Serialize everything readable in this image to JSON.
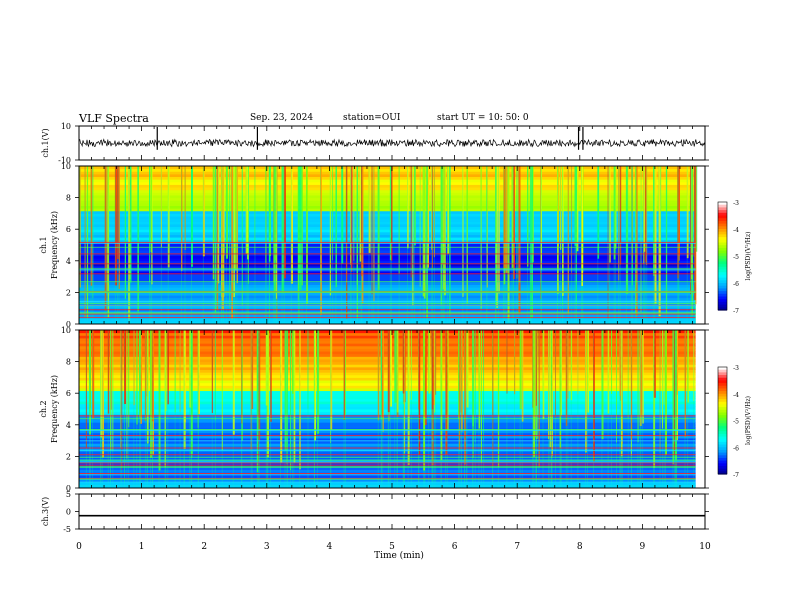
{
  "header": {
    "title": "VLF Spectra",
    "date": "Sep. 23, 2024",
    "station": "station=OUI",
    "start": "start  UT =   10: 50: 0"
  },
  "chart_data": [
    {
      "type": "line",
      "panel": "ch1_waveform",
      "ylabel": "ch.1(V)",
      "ylim": [
        -10,
        10
      ],
      "y_ticks": [
        "10",
        "-10"
      ],
      "x_range": [
        0,
        10
      ],
      "trace_color": "#000000",
      "baseline_value": 0,
      "spikes_min": [
        1.25,
        2.85,
        7.98,
        8.05
      ]
    },
    {
      "type": "heatmap",
      "panel": "ch1_spectrogram",
      "ylabel": "ch.1\nFrequency  (kHz)",
      "ylim": [
        0,
        10
      ],
      "y_ticks": [
        "0",
        "2",
        "4",
        "6",
        "8",
        "10"
      ],
      "x_range": [
        0,
        10
      ],
      "data_extent_min": 9.85,
      "colorbar": {
        "label": "log(PSD)(V²/Hz)",
        "ticks": [
          "-3",
          "-4",
          "-5",
          "-6",
          "-7"
        ],
        "range": [
          -7,
          -3
        ],
        "colormap": [
          "#000080",
          "#0000ff",
          "#00a0ff",
          "#00ffff",
          "#00ff80",
          "#80ff00",
          "#ffff00",
          "#ff8000",
          "#ff0000",
          "#ffffff"
        ]
      }
    },
    {
      "type": "heatmap",
      "panel": "ch2_spectrogram",
      "ylabel": "ch.2\nFrequency  (kHz)",
      "ylim": [
        0,
        10
      ],
      "y_ticks": [
        "0",
        "2",
        "4",
        "6",
        "8",
        "10"
      ],
      "x_range": [
        0,
        10
      ],
      "data_extent_min": 9.85,
      "colorbar": {
        "label": "log(PSD)(V²/Hz)",
        "ticks": [
          "-3",
          "-4",
          "-5",
          "-6",
          "-7"
        ],
        "range": [
          -7,
          -3
        ]
      }
    },
    {
      "type": "line",
      "panel": "ch3_waveform",
      "ylabel": "ch.3(V)",
      "ylim": [
        -5,
        5
      ],
      "y_ticks": [
        "5",
        "0",
        "-5"
      ],
      "x_range": [
        0,
        10
      ],
      "constant_value": -1.2,
      "xlabel": "Time  (min)",
      "x_ticks": [
        "0",
        "1",
        "2",
        "3",
        "4",
        "5",
        "6",
        "7",
        "8",
        "9",
        "10"
      ]
    }
  ]
}
